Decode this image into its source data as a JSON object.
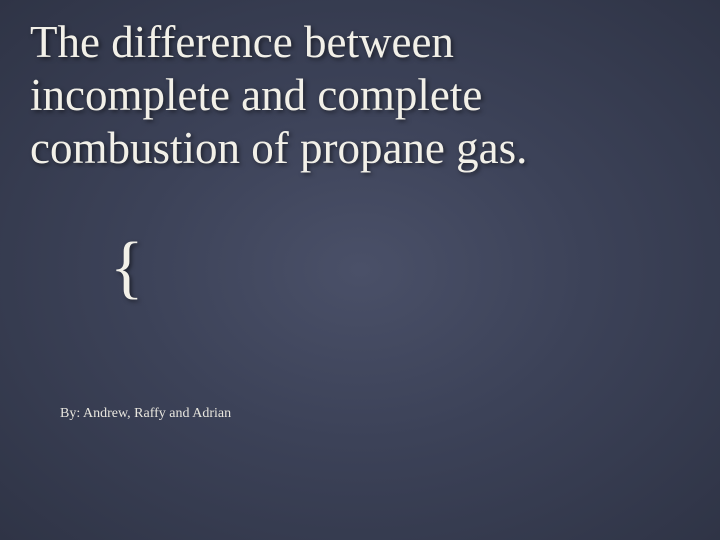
{
  "slide": {
    "title": "The difference between incomplete and complete combustion of propane gas.",
    "brace": "{",
    "byline": "By: Andrew, Raffy and Adrian",
    "background_center": "#4a5068",
    "background_mid": "#3c4258",
    "background_edge": "#2f3446",
    "title_color": "#f2f0e8",
    "title_fontsize": 45,
    "brace_fontsize": 70,
    "byline_fontsize": 14,
    "byline_color": "#e8e6de"
  }
}
